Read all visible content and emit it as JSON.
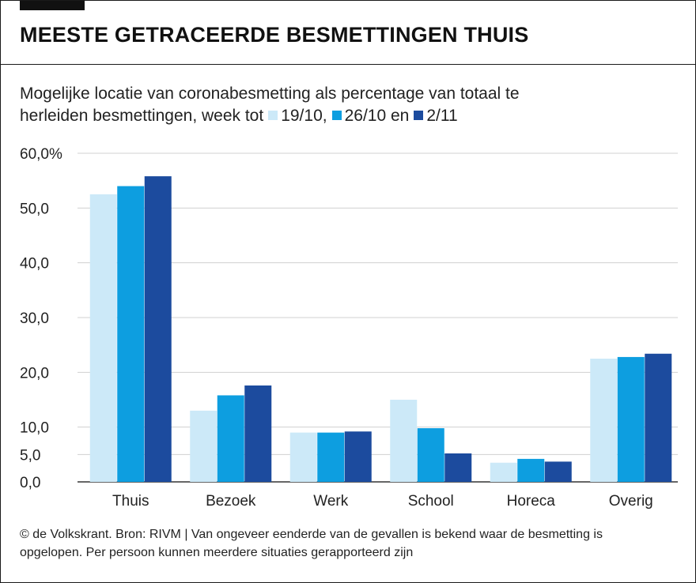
{
  "header": {
    "title": "MEESTE GETRACEERDE BESMETTINGEN THUIS"
  },
  "subtitle": {
    "line1": "Mogelijke locatie van coronabesmetting als percentage van totaal te",
    "line2_prefix": "herleiden besmettingen, week tot",
    "legend_1": "19/10,",
    "legend_2": "26/10 en",
    "legend_3": "2/11"
  },
  "colors": {
    "series_1": "#cce9f8",
    "series_2": "#0d9ee0",
    "series_3": "#1c4b9e",
    "grid": "#d0d0d0",
    "axis": "#333333"
  },
  "chart_data": {
    "type": "bar",
    "title": "MEESTE GETRACEERDE BESMETTINGEN THUIS",
    "xlabel": "",
    "ylabel": "",
    "ylim": [
      0,
      60
    ],
    "y_ticks": [
      0,
      5,
      10,
      20,
      30,
      40,
      50,
      60
    ],
    "y_tick_labels": [
      "0,0",
      "5,0",
      "10,0",
      "20,0",
      "30,0",
      "40,0",
      "50,0",
      "60,0%"
    ],
    "categories": [
      "Thuis",
      "Bezoek",
      "Werk",
      "School",
      "Horeca",
      "Overig"
    ],
    "series": [
      {
        "name": "19/10",
        "values": [
          52.5,
          13.0,
          9.0,
          15.0,
          3.5,
          22.5
        ]
      },
      {
        "name": "26/10",
        "values": [
          54.0,
          15.8,
          9.0,
          9.8,
          4.2,
          22.8
        ]
      },
      {
        "name": "2/11",
        "values": [
          55.8,
          17.6,
          9.2,
          5.2,
          3.7,
          23.4
        ]
      }
    ],
    "legend_position": "subtitle",
    "grid": true
  },
  "footer": {
    "line1": "© de Volkskrant. Bron: RIVM | Van ongeveer eenderde van de gevallen is bekend waar de besmetting is",
    "line2": "opgelopen. Per persoon kunnen meerdere situaties gerapporteerd zijn"
  }
}
